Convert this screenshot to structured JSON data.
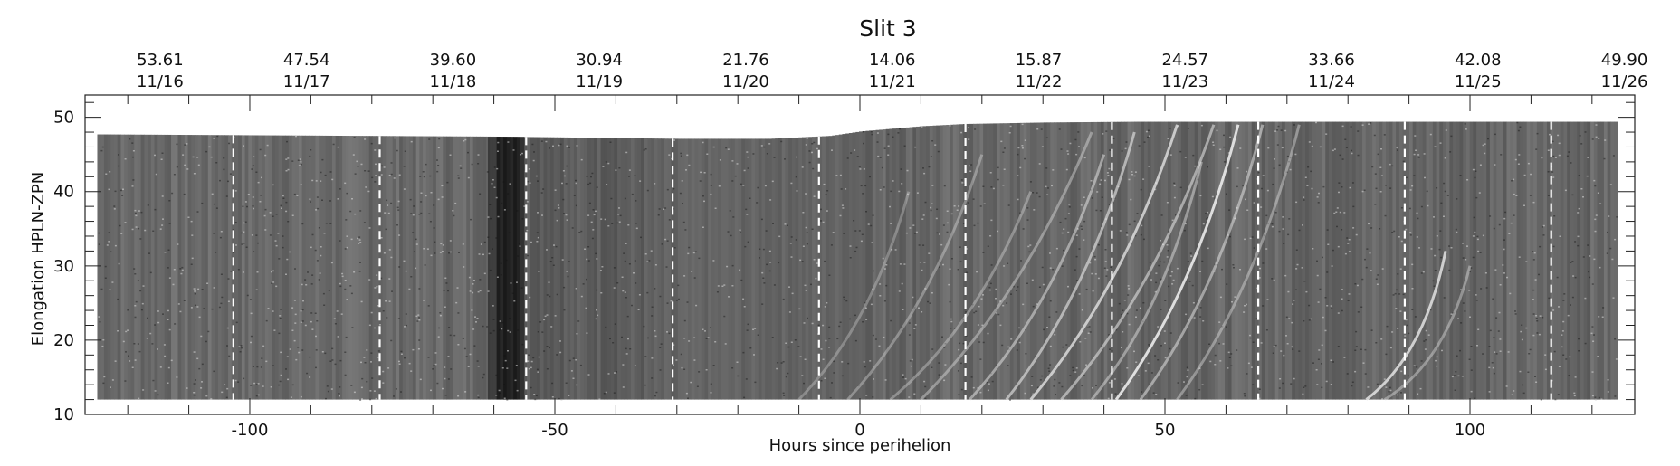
{
  "chart_data": {
    "type": "heatmap",
    "title": "Slit 3",
    "xlabel": "Hours since perihelion",
    "ylabel": "Elongation  HPLN-ZPN",
    "xlim": [
      -127,
      127
    ],
    "ylim": [
      10,
      53
    ],
    "x_ticks": [
      -100,
      -50,
      0,
      50,
      100
    ],
    "y_ticks": [
      10,
      20,
      30,
      40,
      50
    ],
    "top_axis_values": [
      "53.61",
      "47.54",
      "39.60",
      "30.94",
      "21.76",
      "14.06",
      "15.87",
      "24.57",
      "33.66",
      "42.08",
      "49.90"
    ],
    "top_axis_dates": [
      "11/16",
      "11/17",
      "11/18",
      "11/19",
      "11/20",
      "11/21",
      "11/22",
      "11/23",
      "11/24",
      "11/25",
      "11/26"
    ],
    "day_boundary_hours": [
      -102.7,
      -78.7,
      -54.7,
      -30.7,
      -6.7,
      17.3,
      41.3,
      65.3,
      89.3,
      113.3
    ],
    "data_extent_x": [
      -125,
      124
    ],
    "lower_edge_elongation": 12,
    "upper_edge": {
      "x": [
        -125,
        -60,
        -30,
        -15,
        -5,
        0,
        10,
        17,
        30,
        45,
        60,
        124
      ],
      "y": [
        47.7,
        47.4,
        47.1,
        47.1,
        47.5,
        48.1,
        48.8,
        49.1,
        49.3,
        49.4,
        49.4,
        49.4
      ]
    },
    "colormap": "grayscale",
    "grid": false
  }
}
